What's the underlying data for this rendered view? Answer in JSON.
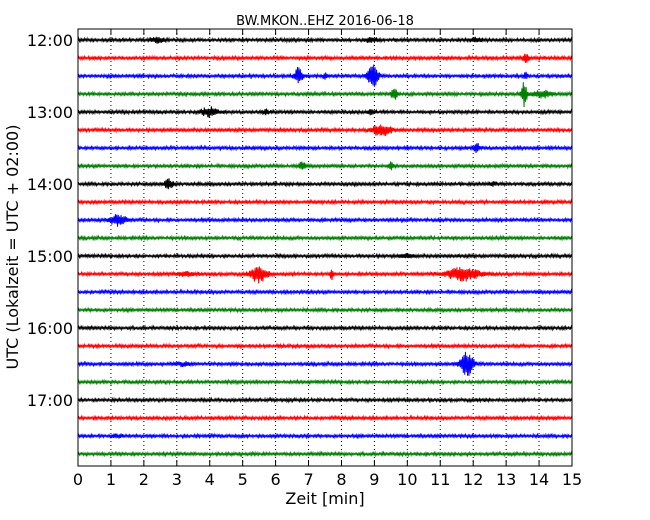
{
  "chart_data": {
    "type": "line",
    "title": "BW.MKON..EHZ 2016-06-18",
    "xlabel": "Zeit  [min]",
    "ylabel": "UTC (Lokalzeit = UTC + 02:00)",
    "xlim": [
      0,
      15
    ],
    "x_ticks": [
      "0",
      "1",
      "2",
      "3",
      "4",
      "5",
      "6",
      "7",
      "8",
      "9",
      "10",
      "11",
      "12",
      "13",
      "14",
      "15"
    ],
    "y_tick_labels": [
      "12:00",
      "13:00",
      "14:00",
      "15:00",
      "16:00",
      "17:00"
    ],
    "grid": "vertical dotted",
    "line_colors": [
      "#000000",
      "#ff0000",
      "#0000ff",
      "#008000"
    ],
    "traces": [
      {
        "start": "12:00",
        "color": "#000000",
        "events": [
          {
            "t": 2.4,
            "amp": 0.12,
            "w": 0.2
          },
          {
            "t": 8.9,
            "amp": 0.12,
            "w": 0.2
          },
          {
            "t": 12.1,
            "amp": 0.1,
            "w": 0.2
          }
        ]
      },
      {
        "start": "12:15",
        "color": "#ff0000",
        "events": [
          {
            "t": 13.6,
            "amp": 0.25,
            "w": 0.1
          }
        ]
      },
      {
        "start": "12:30",
        "color": "#0000ff",
        "events": [
          {
            "t": 6.7,
            "amp": 0.45,
            "w": 0.12
          },
          {
            "t": 7.5,
            "amp": 0.25,
            "w": 0.05
          },
          {
            "t": 8.95,
            "amp": 0.65,
            "w": 0.15
          },
          {
            "t": 13.6,
            "amp": 0.2,
            "w": 0.06
          }
        ]
      },
      {
        "start": "12:45",
        "color": "#008000",
        "events": [
          {
            "t": 9.6,
            "amp": 0.3,
            "w": 0.1
          },
          {
            "t": 13.55,
            "amp": 0.7,
            "w": 0.08
          },
          {
            "t": 14.1,
            "amp": 0.18,
            "w": 0.3
          }
        ]
      },
      {
        "start": "13:00",
        "color": "#000000",
        "events": [
          {
            "t": 4.0,
            "amp": 0.25,
            "w": 0.25
          },
          {
            "t": 5.7,
            "amp": 0.12,
            "w": 0.1
          },
          {
            "t": 8.9,
            "amp": 0.12,
            "w": 0.1
          }
        ]
      },
      {
        "start": "13:15",
        "color": "#ff0000",
        "events": [
          {
            "t": 9.2,
            "amp": 0.3,
            "w": 0.3
          }
        ]
      },
      {
        "start": "13:30",
        "color": "#0000ff",
        "events": [
          {
            "t": 12.1,
            "amp": 0.25,
            "w": 0.1
          }
        ]
      },
      {
        "start": "13:45",
        "color": "#008000",
        "events": [
          {
            "t": 6.8,
            "amp": 0.25,
            "w": 0.1
          },
          {
            "t": 9.5,
            "amp": 0.2,
            "w": 0.06
          }
        ]
      },
      {
        "start": "14:00",
        "color": "#000000",
        "events": [
          {
            "t": 2.75,
            "amp": 0.25,
            "w": 0.15
          },
          {
            "t": 12.6,
            "amp": 0.12,
            "w": 0.1
          }
        ]
      },
      {
        "start": "14:15",
        "color": "#ff0000",
        "events": []
      },
      {
        "start": "14:30",
        "color": "#0000ff",
        "events": [
          {
            "t": 1.2,
            "amp": 0.3,
            "w": 0.25
          }
        ]
      },
      {
        "start": "14:45",
        "color": "#008000",
        "events": []
      },
      {
        "start": "15:00",
        "color": "#000000",
        "events": [
          {
            "t": 10.0,
            "amp": 0.1,
            "w": 0.2
          }
        ]
      },
      {
        "start": "15:15",
        "color": "#ff0000",
        "events": [
          {
            "t": 3.3,
            "amp": 0.1,
            "w": 0.3
          },
          {
            "t": 5.5,
            "amp": 0.45,
            "w": 0.25
          },
          {
            "t": 7.7,
            "amp": 0.3,
            "w": 0.05
          },
          {
            "t": 11.7,
            "amp": 0.35,
            "w": 0.5
          }
        ]
      },
      {
        "start": "15:30",
        "color": "#0000ff",
        "events": []
      },
      {
        "start": "15:45",
        "color": "#008000",
        "events": []
      },
      {
        "start": "16:00",
        "color": "#000000",
        "events": []
      },
      {
        "start": "16:15",
        "color": "#ff0000",
        "events": []
      },
      {
        "start": "16:30",
        "color": "#0000ff",
        "events": [
          {
            "t": 3.2,
            "amp": 0.1,
            "w": 0.2
          },
          {
            "t": 11.8,
            "amp": 0.65,
            "w": 0.2
          }
        ]
      },
      {
        "start": "16:45",
        "color": "#008000",
        "events": []
      },
      {
        "start": "17:00",
        "color": "#000000",
        "events": []
      },
      {
        "start": "17:15",
        "color": "#ff0000",
        "events": []
      },
      {
        "start": "17:30",
        "color": "#0000ff",
        "events": [
          {
            "t": 1.2,
            "amp": 0.1,
            "w": 0.15
          }
        ]
      },
      {
        "start": "17:45",
        "color": "#008000",
        "events": []
      }
    ]
  }
}
